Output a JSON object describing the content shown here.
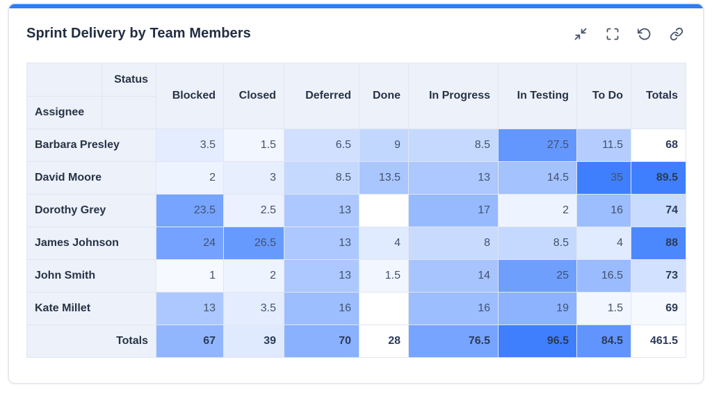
{
  "gadget": {
    "title": "Sprint Delivery by Team Members",
    "accent_color": "#2e7cf6",
    "toolbar_icons": [
      "collapse",
      "fullscreen",
      "refresh",
      "link"
    ]
  },
  "table": {
    "axis": {
      "column_label": "Status",
      "row_label": "Assignee"
    },
    "columns": [
      "Blocked",
      "Closed",
      "Deferred",
      "Done",
      "In Progress",
      "In Testing",
      "To Do"
    ],
    "totals_label": "Totals",
    "rows": [
      {
        "assignee": "Barbara Presley",
        "values": [
          3.5,
          1.5,
          6.5,
          9,
          8.5,
          27.5,
          11.5
        ],
        "total": 68
      },
      {
        "assignee": "David Moore",
        "values": [
          2,
          3,
          8.5,
          13.5,
          13,
          14.5,
          35
        ],
        "total": 89.5
      },
      {
        "assignee": "Dorothy Grey",
        "values": [
          23.5,
          2.5,
          13,
          null,
          17,
          2,
          16
        ],
        "total": 74
      },
      {
        "assignee": "James Johnson",
        "values": [
          24,
          26.5,
          13,
          4,
          8,
          8.5,
          4
        ],
        "total": 88
      },
      {
        "assignee": "John Smith",
        "values": [
          1,
          2,
          13,
          1.5,
          14,
          25,
          16.5
        ],
        "total": 73
      },
      {
        "assignee": "Kate Millet",
        "values": [
          13,
          3.5,
          16,
          null,
          16,
          19,
          1.5
        ],
        "total": 69
      }
    ],
    "totals_row": {
      "label": "Totals",
      "values": [
        67,
        39,
        70,
        28,
        76.5,
        96.5,
        84.5
      ],
      "grand_total": 461.5
    }
  },
  "heatmap": {
    "min_color": "#ffffff",
    "max_color": "#3f7ffd",
    "cell_scale": {
      "min": 0,
      "max": 35,
      "exponent": 0.85
    },
    "row_total_scale": {
      "min": 68,
      "max": 89.5,
      "exponent": 1
    },
    "col_total_scale": {
      "min": 28,
      "max": 96.5,
      "exponent": 1
    }
  }
}
